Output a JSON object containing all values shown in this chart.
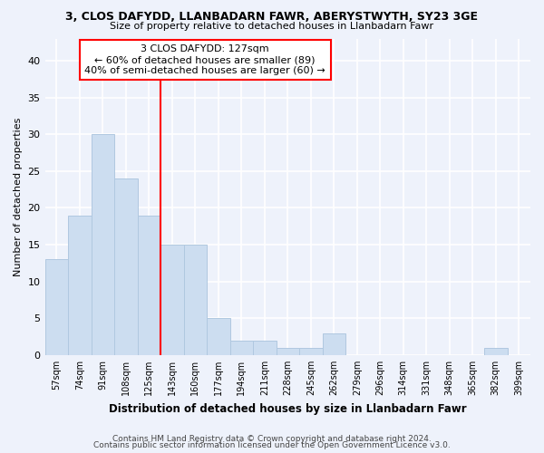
{
  "title_line1": "3, CLOS DAFYDD, LLANBADARN FAWR, ABERYSTWYTH, SY23 3GE",
  "title_line2": "Size of property relative to detached houses in Llanbadarn Fawr",
  "xlabel": "Distribution of detached houses by size in Llanbadarn Fawr",
  "ylabel": "Number of detached properties",
  "categories": [
    "57sqm",
    "74sqm",
    "91sqm",
    "108sqm",
    "125sqm",
    "143sqm",
    "160sqm",
    "177sqm",
    "194sqm",
    "211sqm",
    "228sqm",
    "245sqm",
    "262sqm",
    "279sqm",
    "296sqm",
    "314sqm",
    "331sqm",
    "348sqm",
    "365sqm",
    "382sqm",
    "399sqm"
  ],
  "values": [
    13,
    19,
    30,
    24,
    19,
    15,
    15,
    5,
    2,
    2,
    1,
    1,
    3,
    0,
    0,
    0,
    0,
    0,
    0,
    1,
    0
  ],
  "bar_color": "#ccddf0",
  "bar_edge_color": "#b0c8e0",
  "highlight_bin_index": 4,
  "annotation_line1": "3 CLOS DAFYDD: 127sqm",
  "annotation_line2": "← 60% of detached houses are smaller (89)",
  "annotation_line3": "40% of semi-detached houses are larger (60) →",
  "ylim": [
    0,
    43
  ],
  "yticks": [
    0,
    5,
    10,
    15,
    20,
    25,
    30,
    35,
    40
  ],
  "footer1": "Contains HM Land Registry data © Crown copyright and database right 2024.",
  "footer2": "Contains public sector information licensed under the Open Government Licence v3.0.",
  "bg_color": "#eef2fb",
  "grid_color": "#ffffff"
}
